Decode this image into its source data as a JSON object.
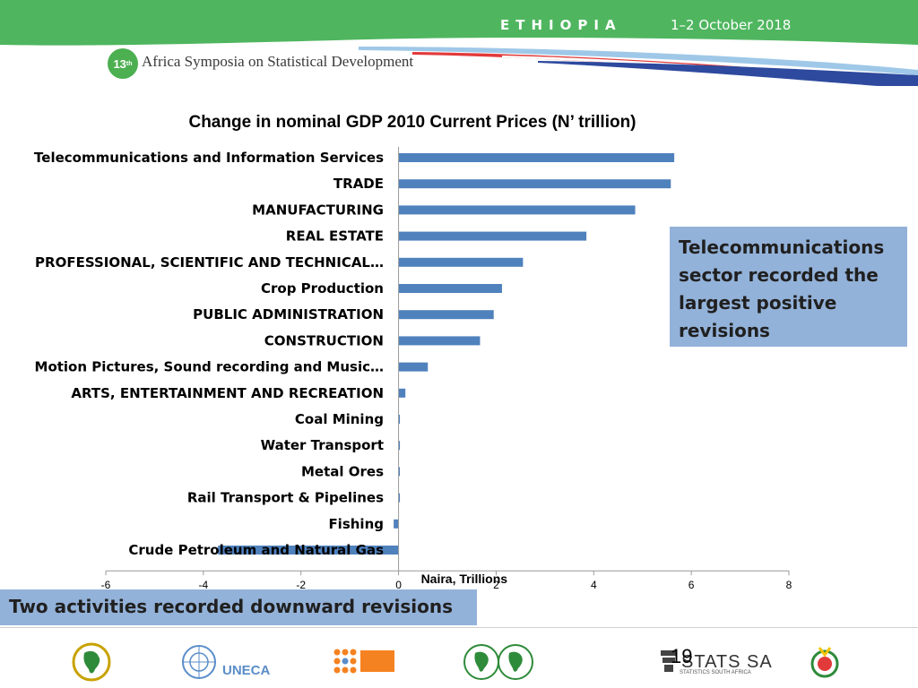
{
  "header": {
    "country": "ETHIOPIA",
    "dates": "1–2 October 2018",
    "badge_number": "13",
    "badge_suffix": "th",
    "symposium": "Africa Symposia on Statistical Development"
  },
  "chart_data": {
    "type": "bar",
    "orientation": "horizontal",
    "title": "Change in nominal GDP 2010 Current Prices (N’ trillion)",
    "xlabel": "Naira, Trillions",
    "ylabel": "",
    "xlim": [
      -6,
      8
    ],
    "xticks": [
      -6,
      -4,
      -2,
      0,
      2,
      4,
      6,
      8
    ],
    "categories": [
      "Telecommunications and Information Services",
      "TRADE",
      "MANUFACTURING",
      "REAL ESTATE",
      "PROFESSIONAL, SCIENTIFIC AND TECHNICAL…",
      "Crop Production",
      "PUBLIC ADMINISTRATION",
      "CONSTRUCTION",
      "Motion Pictures, Sound recording and  Music…",
      "ARTS, ENTERTAINMENT AND RECREATION",
      "Coal Mining",
      "Water Transport",
      "Metal Ores",
      "Rail Transport & Pipelines",
      "Fishing",
      "Crude Petroleum and Natural Gas"
    ],
    "values": [
      5.65,
      5.58,
      4.85,
      3.85,
      2.55,
      2.12,
      1.95,
      1.67,
      0.6,
      0.14,
      0.02,
      0.02,
      0.02,
      0.02,
      -0.1,
      -3.7
    ],
    "bar_color": "#4f81bd",
    "grid": false
  },
  "callout": {
    "lines": [
      "Telecommunications",
      "sector recorded the",
      "largest positive",
      "revisions"
    ]
  },
  "bottom_box": {
    "text": "Two activities recorded downward revisions"
  },
  "footer": {
    "page_number": "19",
    "uneca_label": "UNECA",
    "stats_label": "STATS SA",
    "stats_sub": "STATISTICS SOUTH AFRICA",
    "logos": [
      "african-union-logo",
      "un-emblem",
      "unfpa-logo",
      "afdb-logo",
      "stats-sa-logo",
      "event-logo"
    ]
  },
  "colors": {
    "header_green": "#4fb65f",
    "stripe_blue": "#2e4a9e",
    "stripe_red": "#e23a3a",
    "callout_bg": "#93b2d9"
  }
}
